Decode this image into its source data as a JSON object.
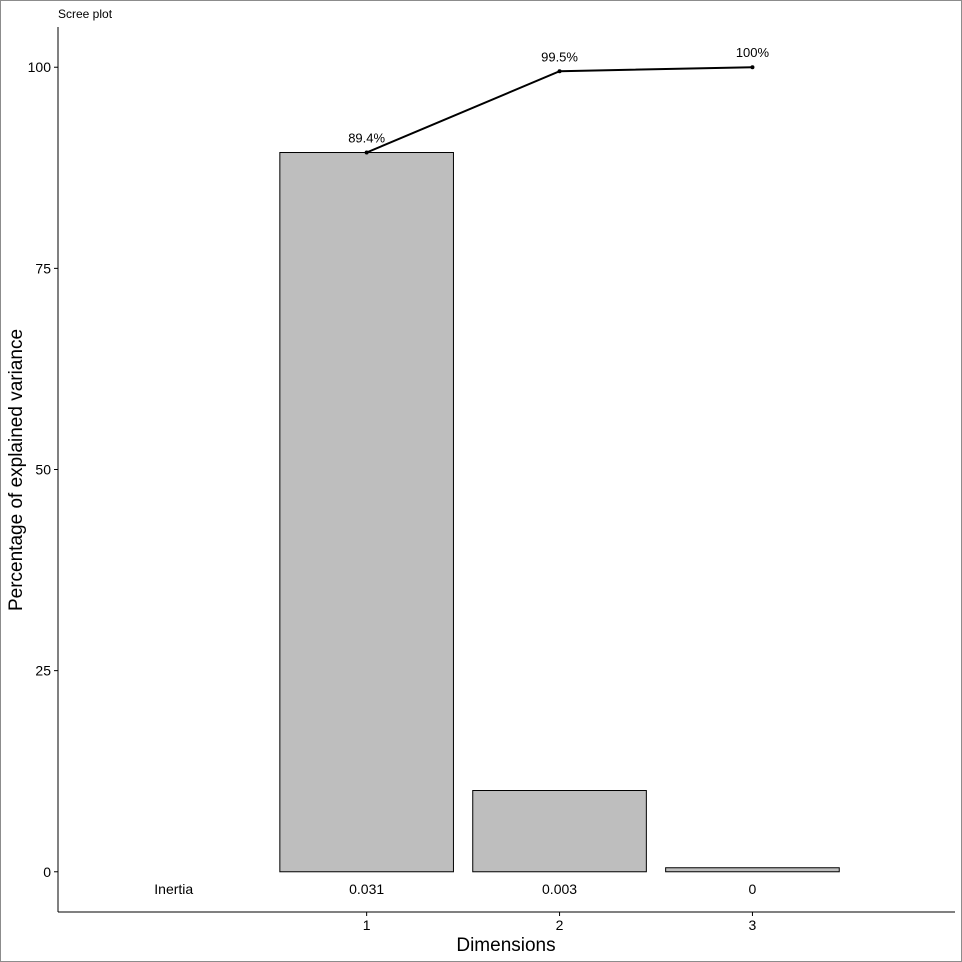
{
  "chart_data": {
    "type": "bar",
    "title": "Scree plot",
    "xlabel": "Dimensions",
    "ylabel": "Percentage of explained variance",
    "categories": [
      "1",
      "2",
      "3"
    ],
    "values": [
      89.4,
      10.1,
      0.5
    ],
    "cumulative": {
      "values": [
        89.4,
        99.5,
        100
      ],
      "labels": [
        "89.4%",
        "99.5%",
        "100%"
      ]
    },
    "inertia": {
      "label": "Inertia",
      "values": [
        "0.031",
        "0.003",
        "0"
      ]
    },
    "yticks": [
      0,
      25,
      50,
      75,
      100
    ],
    "ylim": [
      -5,
      105
    ],
    "grid": false,
    "colors": {
      "bar_fill": "#bebebe",
      "bar_stroke": "#000000",
      "line": "#000000",
      "frame": "#8c8c8c"
    }
  }
}
